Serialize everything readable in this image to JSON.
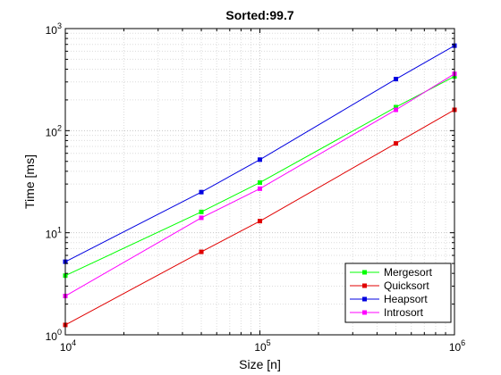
{
  "chart_data": {
    "type": "line",
    "title": "Sorted:99.7",
    "xlabel": "Size [n]",
    "ylabel": "Time [ms]",
    "x_scale": "log",
    "y_scale": "log",
    "xlim": [
      10000,
      1000000
    ],
    "ylim": [
      1,
      1000
    ],
    "grid": true,
    "minor_grid": true,
    "legend_position": "bottom-right",
    "x_ticks": [
      {
        "value": 10000,
        "base": "10",
        "exp": "4"
      },
      {
        "value": 100000,
        "base": "10",
        "exp": "5"
      },
      {
        "value": 1000000,
        "base": "10",
        "exp": "6"
      }
    ],
    "y_ticks": [
      {
        "value": 1,
        "base": "10",
        "exp": "0"
      },
      {
        "value": 10,
        "base": "10",
        "exp": "1"
      },
      {
        "value": 100,
        "base": "10",
        "exp": "2"
      },
      {
        "value": 1000,
        "base": "10",
        "exp": "3"
      }
    ],
    "x": [
      10000,
      50000,
      100000,
      500000,
      1000000
    ],
    "series": [
      {
        "name": "Mergesort",
        "color": "#00ff00",
        "values": [
          3.8,
          16,
          31,
          170,
          340
        ]
      },
      {
        "name": "Quicksort",
        "color": "#e00000",
        "values": [
          1.25,
          6.5,
          13,
          75,
          160
        ]
      },
      {
        "name": "Heapsort",
        "color": "#0000e0",
        "values": [
          5.2,
          25,
          52,
          320,
          680
        ]
      },
      {
        "name": "Introsort",
        "color": "#ff00ff",
        "values": [
          2.4,
          14,
          27,
          160,
          360
        ]
      }
    ]
  }
}
